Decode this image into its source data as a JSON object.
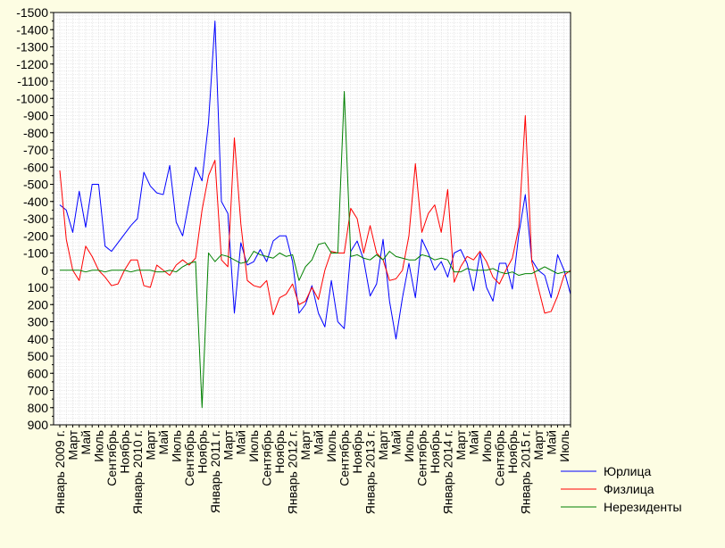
{
  "chart_data": {
    "type": "line",
    "title": "",
    "xlabel": "",
    "ylabel": "",
    "y_ticks": [
      "-1500",
      "-1400",
      "-1300",
      "-1200",
      "-1100",
      "-1000",
      "-900",
      "-800",
      "-700",
      "-600",
      "-500",
      "-400",
      "-300",
      "-200",
      "-100",
      "0",
      "100",
      "200",
      "300",
      "400",
      "500",
      "600",
      "700",
      "800",
      "900"
    ],
    "ylim": [
      -1500,
      900
    ],
    "y_reversed": true,
    "grid": true,
    "legend_position": "bottom-right",
    "x_ticks": [
      {
        "i": 0,
        "label": "Январь 2009 г."
      },
      {
        "i": 2,
        "label": "Март"
      },
      {
        "i": 4,
        "label": "Май"
      },
      {
        "i": 6,
        "label": "Июль"
      },
      {
        "i": 8,
        "label": "Сентябрь"
      },
      {
        "i": 10,
        "label": "Ноябрь"
      },
      {
        "i": 12,
        "label": "Январь 2010 г."
      },
      {
        "i": 14,
        "label": "Март"
      },
      {
        "i": 16,
        "label": "Май"
      },
      {
        "i": 18,
        "label": "Июль"
      },
      {
        "i": 20,
        "label": "Сентябрь"
      },
      {
        "i": 22,
        "label": "Ноябрь"
      },
      {
        "i": 24,
        "label": "Январь 2011 г."
      },
      {
        "i": 26,
        "label": "Март"
      },
      {
        "i": 28,
        "label": "Май"
      },
      {
        "i": 30,
        "label": "Июль"
      },
      {
        "i": 32,
        "label": "Сентябрь"
      },
      {
        "i": 34,
        "label": "Ноябрь"
      },
      {
        "i": 36,
        "label": "Январь 2012 г."
      },
      {
        "i": 38,
        "label": "Март"
      },
      {
        "i": 40,
        "label": "Май"
      },
      {
        "i": 42,
        "label": "Июль"
      },
      {
        "i": 44,
        "label": "Сентябрь"
      },
      {
        "i": 46,
        "label": "Ноябрь"
      },
      {
        "i": 48,
        "label": "Январь 2013 г."
      },
      {
        "i": 50,
        "label": "Март"
      },
      {
        "i": 52,
        "label": "Май"
      },
      {
        "i": 54,
        "label": "Июль"
      },
      {
        "i": 56,
        "label": "Сентябрь"
      },
      {
        "i": 58,
        "label": "Ноябрь"
      },
      {
        "i": 60,
        "label": "Январь 2014 г."
      },
      {
        "i": 62,
        "label": "Март"
      },
      {
        "i": 64,
        "label": "Май"
      },
      {
        "i": 66,
        "label": "Июль"
      },
      {
        "i": 68,
        "label": "Сентябрь"
      },
      {
        "i": 70,
        "label": "Ноябрь"
      },
      {
        "i": 72,
        "label": "Январь 2015 г."
      },
      {
        "i": 74,
        "label": "Март"
      },
      {
        "i": 76,
        "label": "Май"
      },
      {
        "i": 78,
        "label": "Июль"
      }
    ],
    "series": [
      {
        "name": "Юрлица",
        "color": "#0000ff",
        "values": [
          -380,
          -350,
          -220,
          -460,
          -250,
          -500,
          -500,
          -140,
          -110,
          -160,
          -210,
          -260,
          -300,
          -570,
          -490,
          -450,
          -440,
          -610,
          -280,
          -200,
          -400,
          -600,
          -520,
          -860,
          -1450,
          -400,
          -330,
          250,
          -160,
          -30,
          -50,
          -120,
          -50,
          -170,
          -200,
          -200,
          -50,
          250,
          200,
          90,
          250,
          330,
          60,
          300,
          340,
          -110,
          -170,
          -60,
          150,
          80,
          -180,
          180,
          400,
          160,
          -40,
          160,
          -180,
          -100,
          0,
          -50,
          40,
          -100,
          -120,
          -40,
          120,
          -100,
          100,
          180,
          -40,
          -40,
          110,
          -210,
          -440,
          -60,
          0,
          30,
          160,
          -90,
          0,
          140
        ]
      },
      {
        "name": "Физлица",
        "color": "#ff0000",
        "values": [
          -580,
          -180,
          0,
          60,
          -140,
          -80,
          0,
          40,
          90,
          80,
          0,
          -60,
          -60,
          90,
          100,
          -30,
          0,
          30,
          -30,
          -60,
          -30,
          -70,
          -350,
          -550,
          -640,
          -60,
          -20,
          -770,
          -270,
          60,
          90,
          100,
          60,
          260,
          160,
          140,
          80,
          200,
          180,
          100,
          170,
          0,
          -110,
          -100,
          -100,
          -360,
          -300,
          -100,
          -260,
          -100,
          -60,
          60,
          50,
          0,
          -200,
          -620,
          -220,
          -330,
          -380,
          -220,
          -470,
          70,
          -20,
          -80,
          -60,
          -110,
          -50,
          40,
          80,
          0,
          -70,
          -250,
          -900,
          -50,
          100,
          250,
          240,
          150,
          30,
          0
        ]
      },
      {
        "name": "Нерезиденты",
        "color": "#008000",
        "values": [
          0,
          0,
          0,
          0,
          10,
          0,
          0,
          10,
          0,
          0,
          0,
          10,
          0,
          0,
          0,
          10,
          10,
          0,
          10,
          -20,
          -40,
          -50,
          800,
          -100,
          -50,
          -90,
          -80,
          -60,
          -40,
          -50,
          -110,
          -90,
          -80,
          -70,
          -100,
          -80,
          -90,
          60,
          -20,
          -60,
          -150,
          -160,
          -100,
          -100,
          -1040,
          -80,
          -90,
          -70,
          -60,
          -90,
          -60,
          -110,
          -80,
          -70,
          -60,
          -60,
          -90,
          -80,
          -60,
          -70,
          -60,
          10,
          10,
          -10,
          0,
          0,
          0,
          -10,
          10,
          20,
          10,
          30,
          20,
          20,
          0,
          -20,
          0,
          20,
          10,
          10
        ]
      }
    ]
  }
}
